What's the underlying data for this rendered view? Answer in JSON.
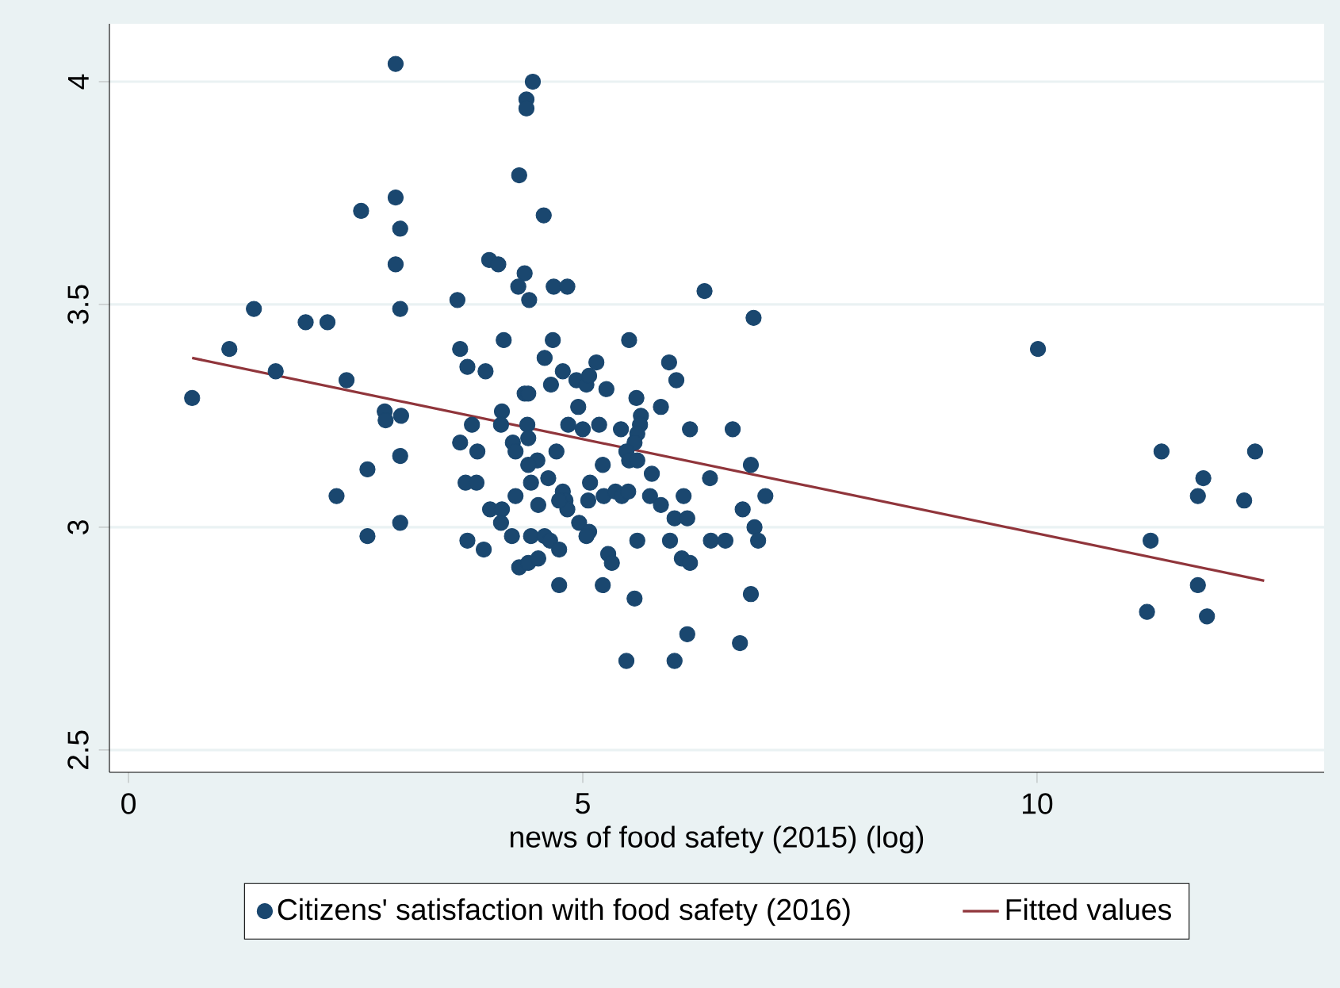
{
  "chart_data": {
    "type": "scatter",
    "xlabel": "news of food safety (2015) (log)",
    "xlim": [
      -0.21,
      13.16
    ],
    "ylim": [
      2.45,
      4.13
    ],
    "xticks": [
      0,
      5,
      10
    ],
    "yticks": [
      2.5,
      3,
      3.5,
      4
    ],
    "grid": "y",
    "legend": "bottom",
    "series": [
      {
        "name": "Citizens' satisfaction with food safety (2016)",
        "marker": "circle",
        "color": "#1a476f",
        "x": [
          2.94,
          2.56,
          2.94,
          2.99,
          2.94,
          2.99,
          3.97,
          4.07,
          3.62,
          1.38,
          1.95,
          2.19,
          1.11,
          1.62,
          2.4,
          0.7,
          3.65,
          3.73,
          3.93,
          2.82,
          2.83,
          3.0,
          2.99,
          2.63,
          2.29,
          2.99,
          2.63,
          3.78,
          3.65,
          3.84,
          3.71,
          3.83,
          3.98,
          4.11,
          4.1,
          3.73,
          3.91,
          4.11,
          4.1,
          4.13,
          4.45,
          4.38,
          4.38,
          4.3,
          4.57,
          4.36,
          4.29,
          4.41,
          4.68,
          4.83,
          6.34,
          6.88,
          4.67,
          4.58,
          5.51,
          4.78,
          4.93,
          5.04,
          5.15,
          5.07,
          4.65,
          5.26,
          4.36,
          4.4,
          5.95,
          6.03,
          5.59,
          4.95,
          5.86,
          5.64,
          5.63,
          5.6,
          5.57,
          4.39,
          4.84,
          5.0,
          5.18,
          5.42,
          6.18,
          6.65,
          4.23,
          4.26,
          4.4,
          4.71,
          5.48,
          5.51,
          5.6,
          4.5,
          4.4,
          4.43,
          4.62,
          5.22,
          5.76,
          6.85,
          6.4,
          5.08,
          4.78,
          4.81,
          4.83,
          4.74,
          5.06,
          5.23,
          5.36,
          5.43,
          5.5,
          5.74,
          5.86,
          6.11,
          7.01,
          6.76,
          4.26,
          4.51,
          4.96,
          5.07,
          5.04,
          6.01,
          6.15,
          6.89,
          6.93,
          4.22,
          4.43,
          4.58,
          4.64,
          4.74,
          5.28,
          5.32,
          5.6,
          5.96,
          6.41,
          6.57,
          6.09,
          6.18,
          4.3,
          4.4,
          4.51,
          4.74,
          5.22,
          5.57,
          6.85,
          6.15,
          6.73,
          5.48,
          6.01,
          10.01,
          11.37,
          12.4,
          11.83,
          11.77,
          12.28,
          11.25,
          11.77,
          11.21,
          11.87
        ],
        "values": [
          4.04,
          3.71,
          3.74,
          3.67,
          3.59,
          3.49,
          3.6,
          3.59,
          3.51,
          3.49,
          3.46,
          3.46,
          3.4,
          3.35,
          3.33,
          3.29,
          3.4,
          3.36,
          3.35,
          3.26,
          3.24,
          3.25,
          3.16,
          3.13,
          3.07,
          3.01,
          2.98,
          3.23,
          3.19,
          3.17,
          3.1,
          3.1,
          3.04,
          3.04,
          3.01,
          2.97,
          2.95,
          3.26,
          3.23,
          3.42,
          4.0,
          3.96,
          3.94,
          3.79,
          3.7,
          3.57,
          3.54,
          3.51,
          3.54,
          3.54,
          3.53,
          3.47,
          3.42,
          3.38,
          3.42,
          3.35,
          3.33,
          3.32,
          3.37,
          3.34,
          3.32,
          3.31,
          3.3,
          3.3,
          3.37,
          3.33,
          3.29,
          3.27,
          3.27,
          3.25,
          3.23,
          3.21,
          3.19,
          3.23,
          3.23,
          3.22,
          3.23,
          3.22,
          3.22,
          3.22,
          3.19,
          3.17,
          3.2,
          3.17,
          3.17,
          3.15,
          3.15,
          3.15,
          3.14,
          3.1,
          3.11,
          3.14,
          3.12,
          3.14,
          3.11,
          3.1,
          3.08,
          3.06,
          3.04,
          3.06,
          3.06,
          3.07,
          3.08,
          3.07,
          3.08,
          3.07,
          3.05,
          3.07,
          3.07,
          3.04,
          3.07,
          3.05,
          3.01,
          2.99,
          2.98,
          3.02,
          3.02,
          3.0,
          2.97,
          2.98,
          2.98,
          2.98,
          2.97,
          2.95,
          2.94,
          2.92,
          2.97,
          2.97,
          2.97,
          2.97,
          2.93,
          2.92,
          2.91,
          2.92,
          2.93,
          2.87,
          2.87,
          2.84,
          2.85,
          2.76,
          2.74,
          2.7,
          2.7,
          3.4,
          3.17,
          3.17,
          3.11,
          3.07,
          3.06,
          2.97,
          2.87,
          2.81,
          2.8
        ]
      },
      {
        "name": "Fitted values",
        "type": "line",
        "marker": "none",
        "color": "#90353b",
        "x": [
          0.7,
          12.5
        ],
        "values": [
          3.38,
          2.88
        ]
      }
    ]
  }
}
